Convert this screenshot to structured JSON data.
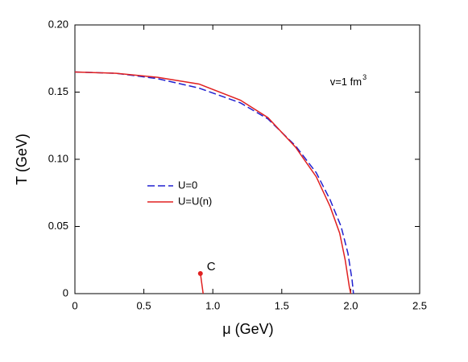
{
  "chart_data": {
    "type": "line",
    "x_label": "μ (GeV)",
    "y_label": "T (GeV)",
    "xlim": [
      0,
      2.5
    ],
    "ylim": [
      0,
      0.2
    ],
    "xticks": [
      0,
      0.5,
      {
        "value": 1,
        "label": "1.0"
      },
      1.5,
      {
        "value": 2,
        "label": "2.0"
      },
      2.5
    ],
    "yticks": [
      0,
      0.05,
      {
        "value": 0.1,
        "label": "0.10"
      },
      0.15,
      {
        "value": 0.2,
        "label": "0.20"
      }
    ],
    "legend": "center left",
    "series": [
      {
        "name": "U=0",
        "color": "#2020d0",
        "dash": true,
        "x": [
          0,
          0.3,
          0.6,
          0.9,
          1.2,
          1.4,
          1.6,
          1.75,
          1.85,
          1.93,
          1.98,
          2.01,
          2.02
        ],
        "values": [
          0.165,
          0.164,
          0.16,
          0.153,
          0.142,
          0.13,
          0.11,
          0.09,
          0.07,
          0.05,
          0.03,
          0.01,
          0
        ]
      },
      {
        "name": "U=U(n)",
        "color": "#e02020",
        "dash": false,
        "x": [
          0,
          0.3,
          0.6,
          0.9,
          1.2,
          1.4,
          1.6,
          1.75,
          1.85,
          1.92,
          1.96,
          1.99,
          2.0,
          null,
          0.91,
          0.93
        ],
        "values": [
          0.165,
          0.164,
          0.161,
          0.156,
          0.144,
          0.131,
          0.109,
          0.087,
          0.065,
          0.045,
          0.025,
          0.005,
          0,
          null,
          0.015,
          0
        ]
      }
    ],
    "point": {
      "text": "C",
      "x": 0.91,
      "y": 0.015,
      "color": "#e02020"
    },
    "annotation": {
      "text": "v=1 fm",
      "superscript": "3",
      "x": 1.85,
      "y": 0.157
    }
  }
}
